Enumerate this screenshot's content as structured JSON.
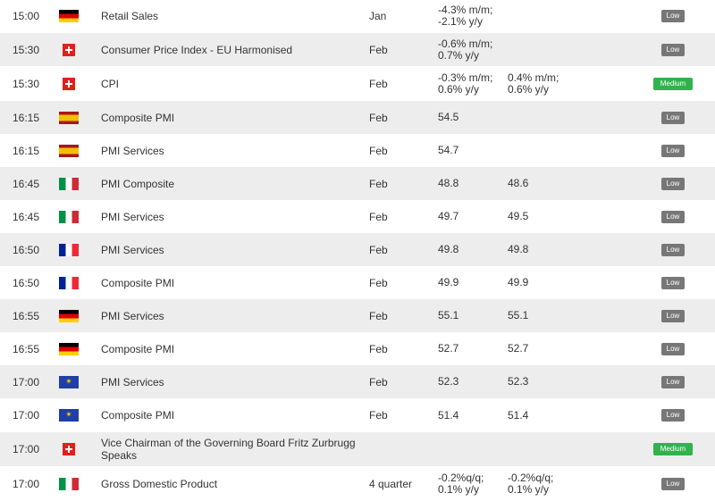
{
  "rows": [
    {
      "time": "15:00",
      "flag": "de-flag-icon",
      "event": "Retail Sales",
      "period": "Jan",
      "actual": [
        "-4.3% m/m;",
        "-2.1% y/y"
      ],
      "forecast": [],
      "impact": "Low",
      "impact_color": "#777777"
    },
    {
      "time": "15:30",
      "flag": "ch-flag-icon",
      "event": "Consumer Price Index - EU Harmonised",
      "period": "Feb",
      "actual": [
        "-0.6% m/m;",
        "0.7% y/y"
      ],
      "forecast": [],
      "impact": "Low",
      "impact_color": "#777777"
    },
    {
      "time": "15:30",
      "flag": "ch-flag-icon",
      "event": "CPI",
      "period": "Feb",
      "actual": [
        "-0.3% m/m;",
        "0.6% y/y"
      ],
      "forecast": [
        "0.4% m/m;",
        "0.6% y/y"
      ],
      "impact": "Medium",
      "impact_color": "#2fb34a"
    },
    {
      "time": "16:15",
      "flag": "es-flag-icon",
      "event": "Composite PMI",
      "period": "Feb",
      "actual": [
        "54.5"
      ],
      "forecast": [],
      "impact": "Low",
      "impact_color": "#777777"
    },
    {
      "time": "16:15",
      "flag": "es-flag-icon",
      "event": "PMI Services",
      "period": "Feb",
      "actual": [
        "54.7"
      ],
      "forecast": [],
      "impact": "Low",
      "impact_color": "#777777"
    },
    {
      "time": "16:45",
      "flag": "it-flag-icon",
      "event": "PMI Composite",
      "period": "Feb",
      "actual": [
        "48.8"
      ],
      "forecast": [
        "48.6"
      ],
      "impact": "Low",
      "impact_color": "#777777"
    },
    {
      "time": "16:45",
      "flag": "it-flag-icon",
      "event": "PMI Services",
      "period": "Feb",
      "actual": [
        "49.7"
      ],
      "forecast": [
        "49.5"
      ],
      "impact": "Low",
      "impact_color": "#777777"
    },
    {
      "time": "16:50",
      "flag": "fr-flag-icon",
      "event": "PMI Services",
      "period": "Feb",
      "actual": [
        "49.8"
      ],
      "forecast": [
        "49.8"
      ],
      "impact": "Low",
      "impact_color": "#777777"
    },
    {
      "time": "16:50",
      "flag": "fr-flag-icon",
      "event": "Composite PMI",
      "period": "Feb",
      "actual": [
        "49.9"
      ],
      "forecast": [
        "49.9"
      ],
      "impact": "Low",
      "impact_color": "#777777"
    },
    {
      "time": "16:55",
      "flag": "de-flag-icon",
      "event": "PMI Services",
      "period": "Feb",
      "actual": [
        "55.1"
      ],
      "forecast": [
        "55.1"
      ],
      "impact": "Low",
      "impact_color": "#777777"
    },
    {
      "time": "16:55",
      "flag": "de-flag-icon",
      "event": "Composite PMI",
      "period": "Feb",
      "actual": [
        "52.7"
      ],
      "forecast": [
        "52.7"
      ],
      "impact": "Low",
      "impact_color": "#777777"
    },
    {
      "time": "17:00",
      "flag": "eu-flag-icon",
      "event": "PMI Services",
      "period": "Feb",
      "actual": [
        "52.3"
      ],
      "forecast": [
        "52.3"
      ],
      "impact": "Low",
      "impact_color": "#777777"
    },
    {
      "time": "17:00",
      "flag": "eu-flag-icon",
      "event": "Composite PMI",
      "period": "Feb",
      "actual": [
        "51.4"
      ],
      "forecast": [
        "51.4"
      ],
      "impact": "Low",
      "impact_color": "#777777"
    },
    {
      "time": "17:00",
      "flag": "ch-flag-icon",
      "event": "Vice Chairman of the Governing Board Fritz Zurbrugg Speaks",
      "period": "",
      "actual": [],
      "forecast": [],
      "impact": "Medium",
      "impact_color": "#2fb34a"
    },
    {
      "time": "17:00",
      "flag": "it-flag-icon",
      "event": "Gross Domestic Product",
      "period": "4 quarter",
      "actual": [
        "-0.2%q/q;",
        "0.1% y/y"
      ],
      "forecast": [
        "-0.2%q/q;",
        "0.1% y/y"
      ],
      "impact": "Low",
      "impact_color": "#777777"
    }
  ]
}
